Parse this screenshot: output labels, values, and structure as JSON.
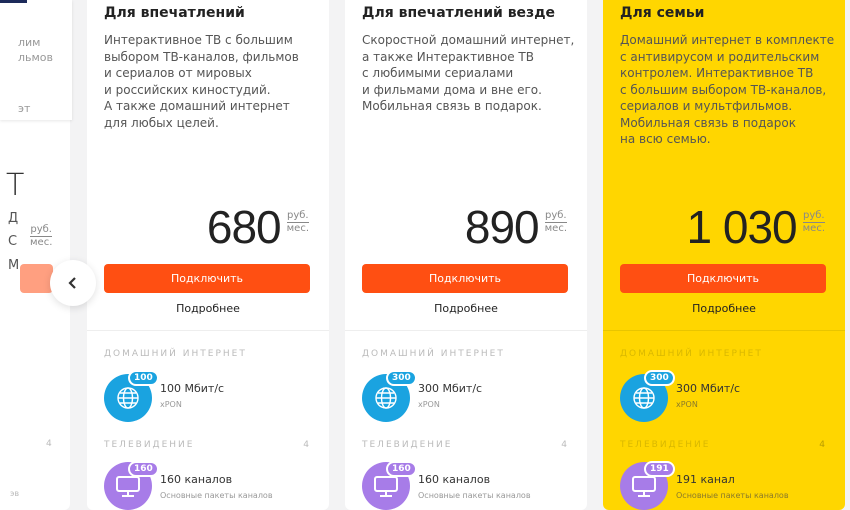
{
  "left_partial": {
    "lines": [
      "лим",
      "льмов",
      "эт"
    ],
    "big": "Т",
    "letters": [
      "Д",
      "С",
      "М"
    ],
    "unit_top": "руб.",
    "unit_bottom": "мес.",
    "count": "4",
    "bottom": "эв"
  },
  "nav": {
    "prev_icon": "chevron-left-icon"
  },
  "colors": {
    "accent": "#ff4f12",
    "highlight": "#ffd600",
    "internet": "#1aa3e0",
    "tv": "#a77ce8"
  },
  "cards": [
    {
      "title": "Для впечатлений",
      "desc": "Интерактивное ТВ с большим\nвыбором ТВ-каналов, фильмов\nи сериалов от мировых\nи российских киностудий.\nА также домашний интернет\nдля любых целей.",
      "price": "680",
      "unit_top": "руб.",
      "unit_bottom": "мес.",
      "button": "Подключить",
      "more": "Подробнее",
      "internet_label": "ДОМАШНИЙ ИНТЕРНЕТ",
      "speed_badge": "100",
      "speed": "100 Мбит/с",
      "tech": "xPON",
      "tv_label": "ТЕЛЕВИДЕНИЕ",
      "tv_count": "4",
      "channels_badge": "160",
      "channels": "160 каналов",
      "packages": "Основные пакеты каналов"
    },
    {
      "title": "Для впечатлений везде",
      "desc": "Скоростной домашний интернет,\nа также Интерактивное ТВ\nс любимыми сериалами\nи фильмами дома и вне его.\nМобильная связь в подарок.",
      "price": "890",
      "unit_top": "руб.",
      "unit_bottom": "мес.",
      "button": "Подключить",
      "more": "Подробнее",
      "internet_label": "ДОМАШНИЙ ИНТЕРНЕТ",
      "speed_badge": "300",
      "speed": "300 Мбит/с",
      "tech": "xPON",
      "tv_label": "ТЕЛЕВИДЕНИЕ",
      "tv_count": "4",
      "channels_badge": "160",
      "channels": "160 каналов",
      "packages": "Основные пакеты каналов"
    },
    {
      "title": "Для семьи",
      "desc": "Домашний интернет в комплекте\nс антивирусом и родительским\nконтролем. Интерактивное ТВ\nс большим выбором ТВ-каналов,\nсериалов и мультфильмов.\nМобильная связь в подарок\nна всю семью.",
      "price": "1 030",
      "unit_top": "руб.",
      "unit_bottom": "мес.",
      "button": "Подключить",
      "more": "Подробнее",
      "internet_label": "ДОМАШНИЙ ИНТЕРНЕТ",
      "speed_badge": "300",
      "speed": "300 Мбит/с",
      "tech": "xPON",
      "tv_label": "ТЕЛЕВИДЕНИЕ",
      "tv_count": "4",
      "channels_badge": "191",
      "channels": "191 канал",
      "packages": "Основные пакеты каналов"
    }
  ]
}
